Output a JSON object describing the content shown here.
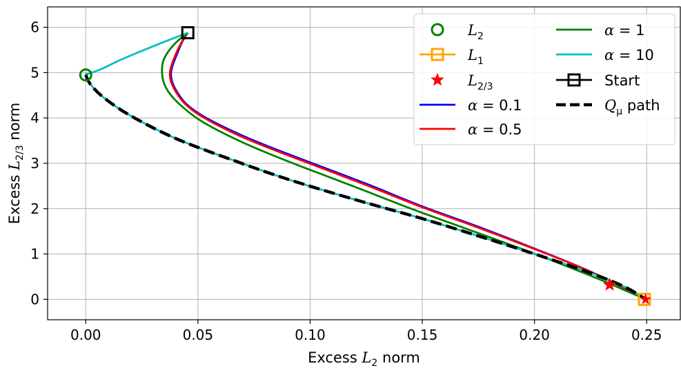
{
  "chart_data": {
    "type": "line",
    "title": "",
    "xlabel": "Excess L₂ norm",
    "ylabel": "Excess L₂⁄₃ norm",
    "xlim": [
      -0.017,
      0.265
    ],
    "ylim": [
      -0.45,
      6.45
    ],
    "grid": true,
    "legend_position": "top-right",
    "x_ticks": [
      0.0,
      0.05,
      0.1,
      0.15,
      0.2,
      0.25
    ],
    "x_tick_labels": [
      "0.00",
      "0.05",
      "0.10",
      "0.15",
      "0.20",
      "0.25"
    ],
    "y_ticks": [
      0,
      1,
      2,
      3,
      4,
      5,
      6
    ],
    "y_tick_labels": [
      "0",
      "1",
      "2",
      "3",
      "4",
      "5",
      "6"
    ],
    "series": [
      {
        "name": "α = 0.1",
        "label_var": "α",
        "label_val": "0.1",
        "color": "#0000ff",
        "style": "solid",
        "x": [
          0.0455,
          0.043,
          0.041,
          0.039,
          0.038,
          0.0385,
          0.041,
          0.045,
          0.052,
          0.065,
          0.08,
          0.1,
          0.125,
          0.15,
          0.175,
          0.2,
          0.22,
          0.235,
          0.245,
          0.249
        ],
        "y": [
          5.88,
          5.68,
          5.45,
          5.2,
          5.0,
          4.8,
          4.55,
          4.3,
          4.05,
          3.72,
          3.4,
          3.02,
          2.55,
          2.05,
          1.6,
          1.12,
          0.72,
          0.38,
          0.12,
          0.02
        ]
      },
      {
        "name": "α = 0.5",
        "label_var": "α",
        "label_val": "0.5",
        "color": "#ff0000",
        "style": "solid",
        "x": [
          0.0455,
          0.0428,
          0.0405,
          0.0385,
          0.0375,
          0.038,
          0.0405,
          0.0445,
          0.0515,
          0.0645,
          0.0795,
          0.0995,
          0.1245,
          0.1495,
          0.1745,
          0.1995,
          0.2198,
          0.2348,
          0.2448,
          0.249
        ],
        "y": [
          5.88,
          5.68,
          5.45,
          5.2,
          5.0,
          4.8,
          4.55,
          4.3,
          4.04,
          3.7,
          3.38,
          3.0,
          2.53,
          2.04,
          1.59,
          1.12,
          0.72,
          0.38,
          0.12,
          0.02
        ]
      },
      {
        "name": "α = 1",
        "label_var": "α",
        "label_val": "1",
        "color": "#008000",
        "style": "solid",
        "x": [
          0.0455,
          0.041,
          0.037,
          0.0345,
          0.034,
          0.035,
          0.038,
          0.043,
          0.05,
          0.06,
          0.075,
          0.095,
          0.12,
          0.145,
          0.17,
          0.195,
          0.215,
          0.232,
          0.244,
          0.249
        ],
        "y": [
          5.88,
          5.7,
          5.48,
          5.25,
          5.0,
          4.75,
          4.5,
          4.25,
          3.98,
          3.7,
          3.35,
          2.95,
          2.48,
          2.0,
          1.55,
          1.1,
          0.72,
          0.38,
          0.12,
          0.02
        ]
      },
      {
        "name": "α = 10",
        "label_var": "α",
        "label_val": "10",
        "color": "#00bfbf",
        "style": "solid",
        "x": [
          0.0455,
          0.035,
          0.025,
          0.015,
          0.007,
          0.0015,
          0.0,
          0.002,
          0.008,
          0.02,
          0.04,
          0.065,
          0.09,
          0.12,
          0.15,
          0.18,
          0.205,
          0.225,
          0.24,
          0.249
        ],
        "y": [
          5.88,
          5.68,
          5.48,
          5.27,
          5.08,
          4.98,
          4.95,
          4.75,
          4.45,
          4.05,
          3.55,
          3.08,
          2.65,
          2.2,
          1.78,
          1.32,
          0.92,
          0.58,
          0.28,
          0.02
        ]
      },
      {
        "name": "Qμ path",
        "label_var": "Q",
        "label_sub": "μ",
        "label_rest": " path",
        "color": "#000000",
        "style": "dashed",
        "x": [
          0.0,
          0.002,
          0.008,
          0.02,
          0.04,
          0.065,
          0.09,
          0.12,
          0.15,
          0.18,
          0.205,
          0.225,
          0.24,
          0.249
        ],
        "y": [
          4.95,
          4.75,
          4.45,
          4.05,
          3.55,
          3.08,
          2.65,
          2.2,
          1.78,
          1.32,
          0.92,
          0.58,
          0.28,
          0.02
        ]
      }
    ],
    "points": [
      {
        "name": "L₂",
        "label_var": "L",
        "label_sub": "2",
        "marker": "circle",
        "color": "#008000",
        "x": 0.0,
        "y": 4.95
      },
      {
        "name": "L₁",
        "label_var": "L",
        "label_sub": "1",
        "marker": "square",
        "color": "#ffa500",
        "x": 0.249,
        "y": 0.0
      },
      {
        "name": "L₂⁄₃",
        "label_var": "L",
        "label_sub": "2/3",
        "marker": "star",
        "color": "#ff0000",
        "x": 0.2335,
        "y": 0.32
      },
      {
        "name": "Start",
        "label_var": "",
        "label_rest": "Start",
        "marker": "square-open",
        "color": "#000000",
        "x": 0.0455,
        "y": 5.88
      }
    ],
    "legend_order": [
      "L₂",
      "L₁",
      "L₂⁄₃",
      "α = 0.1",
      "α = 0.5",
      "α = 1",
      "α = 10",
      "Start",
      "Qμ path"
    ]
  }
}
